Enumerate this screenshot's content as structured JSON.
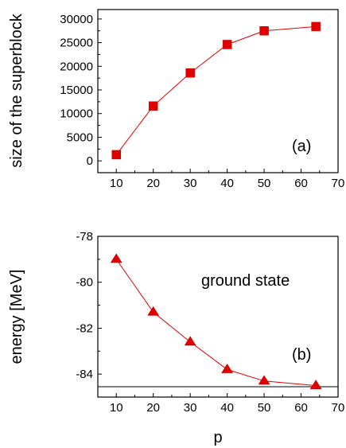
{
  "chart_data": [
    {
      "type": "line",
      "marker": "square",
      "ylabel": "size of the superblock",
      "x": [
        10,
        20,
        30,
        40,
        50,
        64
      ],
      "series": [
        {
          "values": [
            1300,
            11600,
            18600,
            24600,
            27500,
            28400
          ],
          "color": "#e00000"
        }
      ],
      "xlim": [
        5,
        70
      ],
      "ylim": [
        -2500,
        32000
      ],
      "xticks": [
        "10",
        "20",
        "30",
        "40",
        "50",
        "60",
        "70"
      ],
      "yticks": [
        "0",
        "5000",
        "10000",
        "15000",
        "20000",
        "25000",
        "30000"
      ],
      "annotations": [
        "(a)"
      ],
      "grid": false
    },
    {
      "type": "line",
      "marker": "triangle",
      "ylabel": "energy [MeV]",
      "xlabel": "p",
      "x": [
        10,
        20,
        30,
        40,
        50,
        64
      ],
      "series": [
        {
          "values": [
            -79.0,
            -81.3,
            -82.6,
            -83.8,
            -84.3,
            -84.5
          ],
          "color": "#e00000"
        }
      ],
      "reference_line": {
        "y": -84.55
      },
      "xlim": [
        5,
        70
      ],
      "ylim": [
        -85.0,
        -78.0
      ],
      "xticks": [
        "10",
        "20",
        "30",
        "40",
        "50",
        "60",
        "70"
      ],
      "yticks": [
        "-84",
        "-82",
        "-80",
        "-78"
      ],
      "annotations": [
        "ground state",
        "(b)"
      ],
      "grid": false
    }
  ]
}
